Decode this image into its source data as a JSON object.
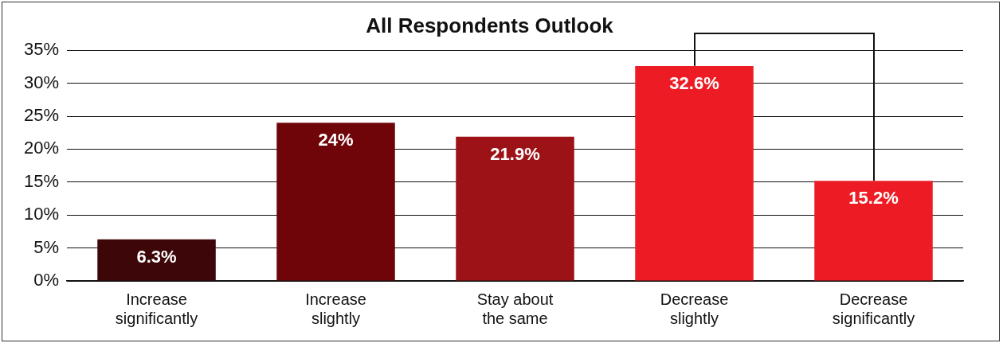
{
  "chart_data": {
    "type": "bar",
    "title": "All Respondents Outlook",
    "categories": [
      "Increase significantly",
      "Increase slightly",
      "Stay about the same",
      "Decrease slightly",
      "Decrease significantly"
    ],
    "values": [
      6.3,
      24,
      21.9,
      32.6,
      15.2
    ],
    "colors": [
      "#3d0608",
      "#700509",
      "#9c1216",
      "#ed1c24",
      "#ed1c24"
    ],
    "value_labels": [
      "6.3%",
      "24%",
      "21.9%",
      "32.6%",
      "15.2%"
    ],
    "ylim": [
      0,
      35
    ],
    "yticks": [
      {
        "value": 0,
        "label": "0%"
      },
      {
        "value": 5,
        "label": "5%"
      },
      {
        "value": 10,
        "label": "10%"
      },
      {
        "value": 15,
        "label": "15%"
      },
      {
        "value": 20,
        "label": "20%"
      },
      {
        "value": 25,
        "label": "25%"
      },
      {
        "value": 30,
        "label": "30%"
      },
      {
        "value": 35,
        "label": "35%"
      }
    ],
    "grid": "y",
    "legend": false
  }
}
